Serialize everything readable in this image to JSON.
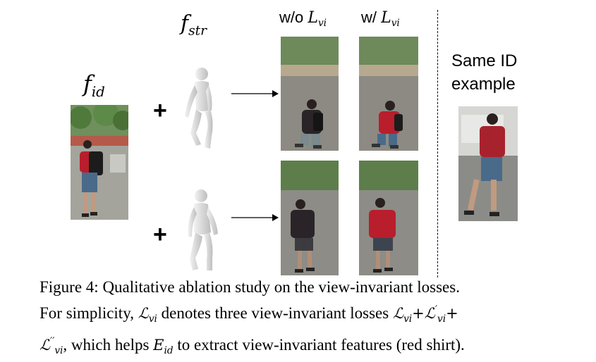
{
  "figure": {
    "fid_label": {
      "base": "f",
      "sub": "id"
    },
    "fstr_label": {
      "base": "f",
      "sub": "str"
    },
    "plus_symbol": "+",
    "col_without": {
      "prefix": "w/o ",
      "base": "L",
      "sub": "vi"
    },
    "col_with": {
      "prefix": "w/ ",
      "base": "L",
      "sub": "vi"
    },
    "same_id_line1": "Same ID",
    "same_id_line2": "example"
  },
  "caption": {
    "line1": "Figure 4: Qualitative ablation study on the view-invariant losses.",
    "line2_a": "For simplicity, ",
    "line2_b": " denotes three view-invariant losses ",
    "line3_b": ", which helps ",
    "line3_c": " to extract view-invariant features (red shirt).",
    "sym_L": "ℒ",
    "sym_vi": "vi",
    "sym_E": "E",
    "sym_id": "id",
    "sym_prime": "′",
    "sym_dprime": "′′",
    "sym_plus": "+"
  },
  "colors": {
    "red_shirt": "#b81e2c",
    "dark_shirt": "#2a2428",
    "jeans": "#4a6a8a",
    "street": "#8c8a82",
    "foliage": "#4f7a3c",
    "body_model": "#d9d9d9"
  }
}
